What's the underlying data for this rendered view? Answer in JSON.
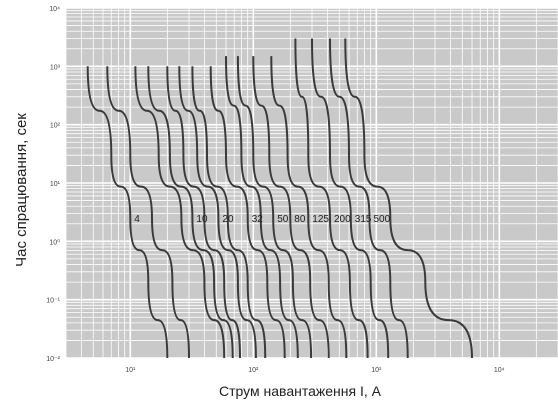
{
  "chart_data": {
    "type": "line",
    "xlabel": "Струм навантаження I, А",
    "ylabel": "Час спрацювання, сек",
    "x_scale": "log",
    "y_scale": "log",
    "xlim": [
      3,
      30000
    ],
    "ylim": [
      0.01,
      10000
    ],
    "x_ticks": [
      "10¹",
      "10²",
      "10³",
      "10⁴"
    ],
    "y_ticks": [
      "10⁴",
      "10³",
      "10²",
      "10¹",
      "10⁰",
      "10⁻¹",
      "10⁻²"
    ],
    "grid": true,
    "series": [
      {
        "name": "4",
        "points": [
          [
            4.5,
            1000
          ],
          [
            7,
            30
          ],
          [
            10,
            2.5
          ],
          [
            14,
            0.2
          ],
          [
            20,
            0.01
          ]
        ]
      },
      {
        "name": "",
        "points": [
          [
            6.5,
            1000
          ],
          [
            10,
            30
          ],
          [
            15,
            2.5
          ],
          [
            22,
            0.2
          ],
          [
            30,
            0.01
          ]
        ]
      },
      {
        "name": "",
        "points": [
          [
            11,
            1000
          ],
          [
            17,
            30
          ],
          [
            26,
            2.5
          ],
          [
            40,
            0.2
          ],
          [
            58,
            0.01
          ]
        ]
      },
      {
        "name": "10",
        "points": [
          [
            14,
            1000
          ],
          [
            21,
            30
          ],
          [
            32,
            2.5
          ],
          [
            48,
            0.2
          ],
          [
            68,
            0.01
          ]
        ]
      },
      {
        "name": "",
        "points": [
          [
            20,
            1000
          ],
          [
            27,
            30
          ],
          [
            40,
            2.5
          ],
          [
            58,
            0.2
          ],
          [
            78,
            0.01
          ]
        ]
      },
      {
        "name": "20",
        "points": [
          [
            25,
            1000
          ],
          [
            35,
            30
          ],
          [
            52,
            2.5
          ],
          [
            75,
            0.2
          ],
          [
            105,
            0.01
          ]
        ]
      },
      {
        "name": "",
        "points": [
          [
            32,
            1000
          ],
          [
            42,
            30
          ],
          [
            62,
            2.5
          ],
          [
            90,
            0.2
          ],
          [
            125,
            0.01
          ]
        ]
      },
      {
        "name": "32",
        "points": [
          [
            45,
            1000
          ],
          [
            60,
            30
          ],
          [
            90,
            2.5
          ],
          [
            130,
            0.2
          ],
          [
            180,
            0.01
          ]
        ]
      },
      {
        "name": "",
        "points": [
          [
            60,
            1500
          ],
          [
            80,
            30
          ],
          [
            115,
            2.5
          ],
          [
            165,
            0.2
          ],
          [
            230,
            0.01
          ]
        ]
      },
      {
        "name": "50",
        "points": [
          [
            75,
            1500
          ],
          [
            100,
            30
          ],
          [
            145,
            2.5
          ],
          [
            210,
            0.2
          ],
          [
            295,
            0.01
          ]
        ]
      },
      {
        "name": "80",
        "points": [
          [
            100,
            1500
          ],
          [
            135,
            30
          ],
          [
            200,
            2.5
          ],
          [
            290,
            0.2
          ],
          [
            410,
            0.01
          ]
        ]
      },
      {
        "name": "125",
        "points": [
          [
            140,
            1500
          ],
          [
            190,
            30
          ],
          [
            280,
            2.5
          ],
          [
            410,
            0.2
          ],
          [
            570,
            0.01
          ]
        ]
      },
      {
        "name": "200",
        "points": [
          [
            220,
            3000
          ],
          [
            280,
            30
          ],
          [
            420,
            2.5
          ],
          [
            610,
            0.2
          ],
          [
            850,
            0.01
          ]
        ]
      },
      {
        "name": "315",
        "points": [
          [
            300,
            3000
          ],
          [
            420,
            30
          ],
          [
            620,
            2.5
          ],
          [
            900,
            0.2
          ],
          [
            1250,
            0.01
          ]
        ]
      },
      {
        "name": "500",
        "points": [
          [
            420,
            3000
          ],
          [
            600,
            30
          ],
          [
            880,
            2.5
          ],
          [
            1300,
            0.2
          ],
          [
            1800,
            0.01
          ]
        ]
      },
      {
        "name": "",
        "points": [
          [
            560,
            3000
          ],
          [
            800,
            30
          ],
          [
            1300,
            2.5
          ],
          [
            2500,
            0.2
          ],
          [
            6000,
            0.01
          ]
        ]
      }
    ]
  }
}
